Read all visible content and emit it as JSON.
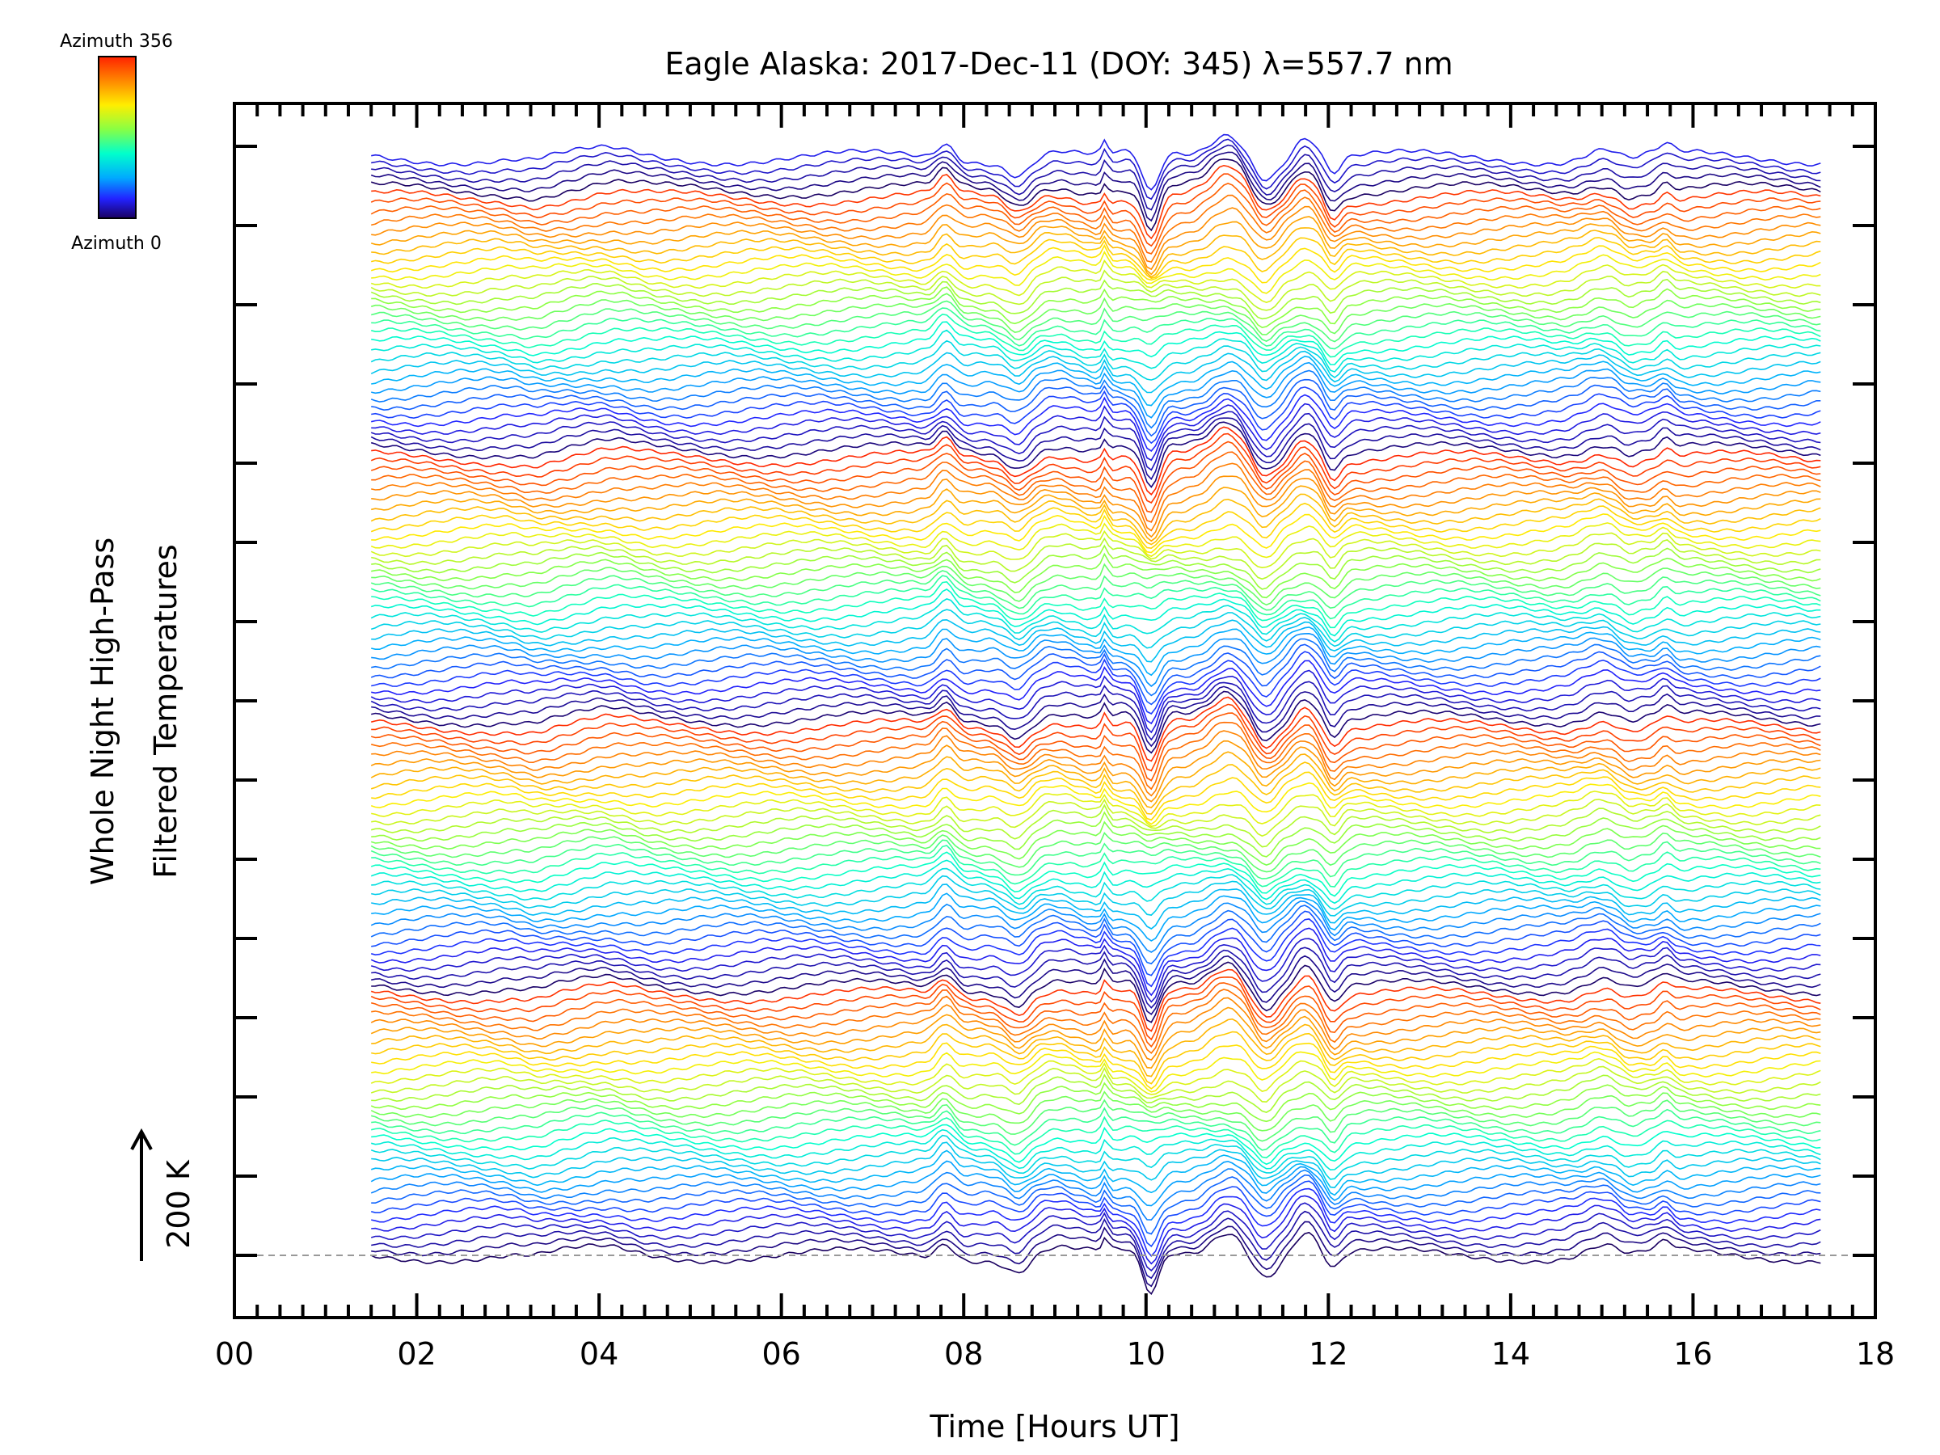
{
  "chart_data": {
    "type": "line",
    "title": "Eagle Alaska: 2017-Dec-11 (DOY: 345) λ=557.7 nm",
    "xlabel": "Time [Hours UT]",
    "ylabel_line1": "Whole Night High-Pass",
    "ylabel_line2": "Filtered Temperatures",
    "xlim": [
      0,
      18
    ],
    "x_ticks": [
      "00",
      "02",
      "04",
      "06",
      "08",
      "10",
      "12",
      "14",
      "16",
      "18"
    ],
    "scale_bar_label": "200 K",
    "colorbar": {
      "top_label": "Azimuth 356",
      "bottom_label": "Azimuth 0",
      "colors": [
        "#ff2200",
        "#ff8800",
        "#ffee00",
        "#88ff44",
        "#00ffcc",
        "#00aaff",
        "#2222ff",
        "#1a0060"
      ]
    },
    "num_traces": 136,
    "azimuth_range": [
      0,
      356
    ],
    "time_range": [
      1.5,
      17.4
    ],
    "grid": false,
    "baseline_dashed": true
  }
}
